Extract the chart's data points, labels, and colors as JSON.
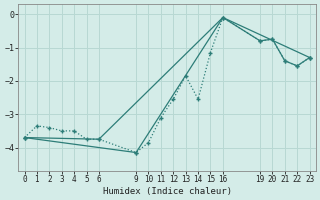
{
  "xlabel": "Humidex (Indice chaleur)",
  "bg_color": "#d4ece8",
  "line_color": "#2d7d78",
  "grid_color": "#b8d8d3",
  "xlim": [
    -0.5,
    23.5
  ],
  "ylim": [
    -4.7,
    0.3
  ],
  "xticks": [
    0,
    1,
    2,
    3,
    4,
    5,
    6,
    9,
    10,
    11,
    12,
    13,
    14,
    15,
    16,
    19,
    20,
    21,
    22,
    23
  ],
  "yticks": [
    0,
    -1,
    -2,
    -3,
    -4
  ],
  "series1_x": [
    0,
    1,
    2,
    3,
    4,
    5,
    6,
    9,
    10,
    11,
    12,
    13,
    14,
    15,
    16,
    19,
    20,
    21,
    22,
    23
  ],
  "series1_y": [
    -3.7,
    -3.35,
    -3.4,
    -3.5,
    -3.5,
    -3.75,
    -3.75,
    -4.15,
    -3.85,
    -3.1,
    -2.55,
    -1.85,
    -2.55,
    -1.15,
    -0.1,
    -0.8,
    -0.75,
    -1.4,
    -1.55,
    -1.3
  ],
  "series2_x": [
    0,
    6,
    16,
    23
  ],
  "series2_y": [
    -3.7,
    -3.75,
    -0.1,
    -1.3
  ],
  "series3_x": [
    0,
    9,
    16,
    19,
    20,
    21,
    22,
    23
  ],
  "series3_y": [
    -3.7,
    -4.15,
    -0.1,
    -0.8,
    -0.75,
    -1.4,
    -1.55,
    -1.3
  ],
  "figsize": [
    3.2,
    2.0
  ],
  "dpi": 100
}
